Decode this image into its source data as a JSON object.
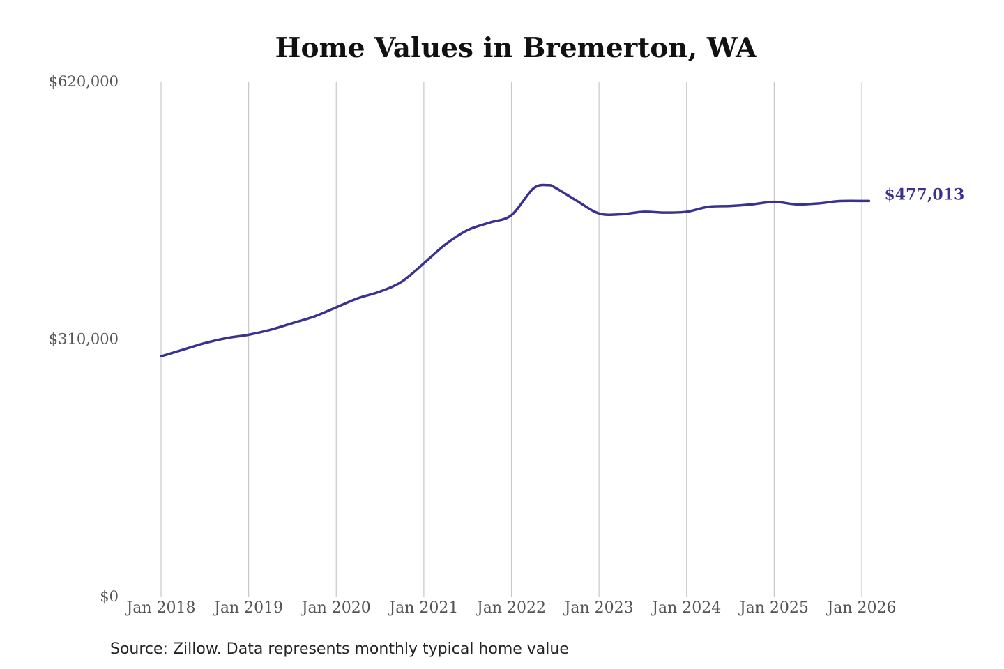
{
  "chart_data": {
    "type": "line",
    "title": "Home Values in Bremerton, WA",
    "xlabel": "",
    "ylabel": "",
    "ylim": [
      0,
      620000
    ],
    "y_ticks": [
      {
        "value": 620000,
        "label": "$620,000"
      },
      {
        "value": 310000,
        "label": "$310,000"
      },
      {
        "value": 0,
        "label": "$0"
      }
    ],
    "x_ticks": [
      {
        "value": "2018-01",
        "label": "Jan 2018"
      },
      {
        "value": "2019-01",
        "label": "Jan 2019"
      },
      {
        "value": "2020-01",
        "label": "Jan 2020"
      },
      {
        "value": "2021-01",
        "label": "Jan 2021"
      },
      {
        "value": "2022-01",
        "label": "Jan 2022"
      },
      {
        "value": "2023-01",
        "label": "Jan 2023"
      },
      {
        "value": "2024-01",
        "label": "Jan 2024"
      },
      {
        "value": "2025-01",
        "label": "Jan 2025"
      },
      {
        "value": "2026-01",
        "label": "Jan 2026"
      }
    ],
    "grid": {
      "vertical": true,
      "horizontal": false
    },
    "legend": "none",
    "series": [
      {
        "color": "#3a3190",
        "points": [
          {
            "x": "2018-01",
            "y": 290000
          },
          {
            "x": "2018-04",
            "y": 298000
          },
          {
            "x": "2018-07",
            "y": 306000
          },
          {
            "x": "2018-10",
            "y": 312000
          },
          {
            "x": "2019-01",
            "y": 316000
          },
          {
            "x": "2019-04",
            "y": 322000
          },
          {
            "x": "2019-07",
            "y": 330000
          },
          {
            "x": "2019-10",
            "y": 338000
          },
          {
            "x": "2020-01",
            "y": 349000
          },
          {
            "x": "2020-04",
            "y": 360000
          },
          {
            "x": "2020-07",
            "y": 368000
          },
          {
            "x": "2020-10",
            "y": 380000
          },
          {
            "x": "2021-01",
            "y": 402000
          },
          {
            "x": "2021-04",
            "y": 425000
          },
          {
            "x": "2021-07",
            "y": 442000
          },
          {
            "x": "2021-10",
            "y": 451000
          },
          {
            "x": "2022-01",
            "y": 460000
          },
          {
            "x": "2022-04",
            "y": 492000
          },
          {
            "x": "2022-06",
            "y": 496000
          },
          {
            "x": "2022-07",
            "y": 493000
          },
          {
            "x": "2022-10",
            "y": 477000
          },
          {
            "x": "2023-01",
            "y": 462000
          },
          {
            "x": "2023-04",
            "y": 461000
          },
          {
            "x": "2023-07",
            "y": 464000
          },
          {
            "x": "2023-10",
            "y": 463000
          },
          {
            "x": "2024-01",
            "y": 464000
          },
          {
            "x": "2024-04",
            "y": 470000
          },
          {
            "x": "2024-07",
            "y": 471000
          },
          {
            "x": "2024-10",
            "y": 473000
          },
          {
            "x": "2025-01",
            "y": 476000
          },
          {
            "x": "2025-04",
            "y": 473000
          },
          {
            "x": "2025-07",
            "y": 474000
          },
          {
            "x": "2025-10",
            "y": 477000
          },
          {
            "x": "2026-02",
            "y": 477013
          }
        ]
      }
    ],
    "annotations": [
      {
        "text": "$477,013",
        "x": "2026-02",
        "y": 477013
      }
    ],
    "source": "Source: Zillow. Data represents monthly typical home value"
  }
}
